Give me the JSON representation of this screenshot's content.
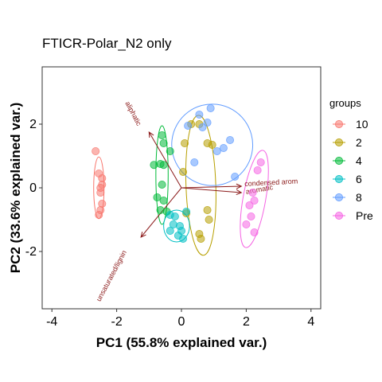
{
  "chart_data": {
    "type": "scatter",
    "title": "FTICR-Polar_N2 only",
    "xlabel": "PC1 (55.8% explained var.)",
    "ylabel": "PC2 (33.6% explained var.)",
    "xlim": [
      -4.3,
      4.3
    ],
    "ylim": [
      -3.8,
      3.8
    ],
    "xticks": [
      -4,
      -2,
      0,
      2,
      4
    ],
    "yticks": [
      -2,
      0,
      2
    ],
    "x_tick_labels": [
      "-4",
      "-2",
      "0",
      "2",
      "4"
    ],
    "y_tick_labels": [
      "-2",
      "0",
      "2"
    ],
    "legend_title": "groups",
    "legend_position": "right",
    "grid": false,
    "series": [
      {
        "name": "10",
        "color": "#F8766D",
        "points": [
          [
            -2.65,
            1.15
          ],
          [
            -2.55,
            0.45
          ],
          [
            -2.45,
            0.3
          ],
          [
            -2.45,
            0.1
          ],
          [
            -2.5,
            0.0
          ],
          [
            -2.5,
            -0.15
          ],
          [
            -2.45,
            -0.5
          ],
          [
            -2.5,
            -0.7
          ],
          [
            -2.55,
            -0.85
          ]
        ],
        "ellipse": {
          "cx": -2.55,
          "cy": 0.0,
          "rx": 0.16,
          "ry": 0.97,
          "rot": 0
        }
      },
      {
        "name": "2",
        "color": "#B79F00",
        "points": [
          [
            0.3,
            2.0
          ],
          [
            0.55,
            2.0
          ],
          [
            0.8,
            1.4
          ],
          [
            0.1,
            1.4
          ],
          [
            0.05,
            0.5
          ],
          [
            0.8,
            -0.7
          ],
          [
            0.85,
            -1.0
          ],
          [
            0.55,
            -1.45
          ],
          [
            0.6,
            -1.6
          ],
          [
            0.15,
            -0.8
          ],
          [
            0.95,
            1.35
          ]
        ],
        "ellipse": {
          "cx": 0.6,
          "cy": 0.08,
          "rx": 0.46,
          "ry": 2.2,
          "rot": -2
        }
      },
      {
        "name": "4",
        "color": "#00BA38",
        "points": [
          [
            -0.6,
            1.65
          ],
          [
            -0.55,
            1.4
          ],
          [
            -0.35,
            1.15
          ],
          [
            -0.65,
            0.75
          ],
          [
            -0.55,
            0.72
          ],
          [
            -0.85,
            0.72
          ],
          [
            -0.6,
            0.1
          ],
          [
            -0.55,
            -0.4
          ],
          [
            -0.45,
            -0.75
          ],
          [
            -0.65,
            -0.7
          ],
          [
            -0.75,
            -0.3
          ]
        ],
        "ellipse": {
          "cx": -0.6,
          "cy": 0.4,
          "rx": 0.19,
          "ry": 1.55,
          "rot": 0
        }
      },
      {
        "name": "6",
        "color": "#00BFC4",
        "points": [
          [
            0.15,
            -0.75
          ],
          [
            -0.2,
            -0.9
          ],
          [
            -0.25,
            -1.15
          ],
          [
            -0.35,
            -1.35
          ],
          [
            0.0,
            -1.35
          ],
          [
            0.05,
            -1.6
          ],
          [
            -0.1,
            -1.5
          ],
          [
            -0.35,
            -0.85
          ],
          [
            -0.05,
            -1.2
          ]
        ],
        "ellipse": {
          "cx": -0.15,
          "cy": -1.2,
          "rx": 0.4,
          "ry": 0.5,
          "rot": 0
        }
      },
      {
        "name": "8",
        "color": "#619CFF",
        "points": [
          [
            0.9,
            2.5
          ],
          [
            0.55,
            2.3
          ],
          [
            0.8,
            2.05
          ],
          [
            0.65,
            1.9
          ],
          [
            0.2,
            1.95
          ],
          [
            1.5,
            1.5
          ],
          [
            1.3,
            1.25
          ],
          [
            1.1,
            1.15
          ],
          [
            1.65,
            0.35
          ],
          [
            0.4,
            0.8
          ]
        ],
        "ellipse": {
          "cx": 0.95,
          "cy": 1.35,
          "rx": 1.25,
          "ry": 1.28,
          "rot": -15
        }
      },
      {
        "name": "Pre",
        "color": "#F564E3",
        "points": [
          [
            2.45,
            0.8
          ],
          [
            2.35,
            0.55
          ],
          [
            2.2,
            -0.15
          ],
          [
            2.25,
            -0.4
          ],
          [
            2.0,
            -1.15
          ],
          [
            2.25,
            -1.4
          ],
          [
            2.15,
            -0.9
          ],
          [
            2.1,
            -0.55
          ]
        ],
        "ellipse": {
          "cx": 2.25,
          "cy": -0.35,
          "rx": 0.35,
          "ry": 1.55,
          "rot": 10
        }
      }
    ],
    "arrows": [
      {
        "label": "aliphatic",
        "x": -1.0,
        "y": 1.75,
        "label_x": -1.55,
        "label_y": 2.3,
        "angle": 62
      },
      {
        "label": "condensed arom",
        "x": 1.85,
        "y": 0.05,
        "label_x": 1.95,
        "label_y": 0.05,
        "angle": -3
      },
      {
        "label": "aromatic",
        "x": 1.85,
        "y": -0.15,
        "label_x": 2.0,
        "label_y": -0.2,
        "angle": -10
      },
      {
        "label": "unsaturated/lignin",
        "x": -1.25,
        "y": -1.55,
        "label_x": -2.1,
        "label_y": -2.8,
        "angle": -62
      }
    ],
    "arrow_color": "#8b1a1a"
  }
}
